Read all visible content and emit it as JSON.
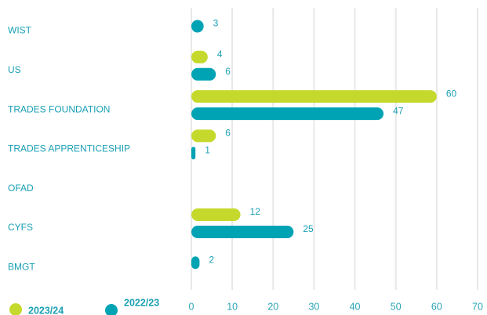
{
  "chart_data": {
    "type": "bar",
    "orientation": "horizontal",
    "categories": [
      "WIST",
      "US",
      "TRADES FOUNDATION",
      "TRADES APPRENTICESHIP",
      "OFAD",
      "CYFS",
      "BMGT"
    ],
    "series": [
      {
        "name": "2023/24",
        "color": "#c5d92d",
        "values": [
          null,
          4,
          60,
          6,
          null,
          12,
          null
        ]
      },
      {
        "name": "2022/23",
        "color": "#00a3b4",
        "values": [
          3,
          6,
          47,
          1,
          null,
          25,
          2
        ]
      }
    ],
    "xlim": [
      0,
      70
    ],
    "xticks": [
      0,
      10,
      20,
      30,
      40,
      50,
      60,
      70
    ],
    "grid": true
  }
}
